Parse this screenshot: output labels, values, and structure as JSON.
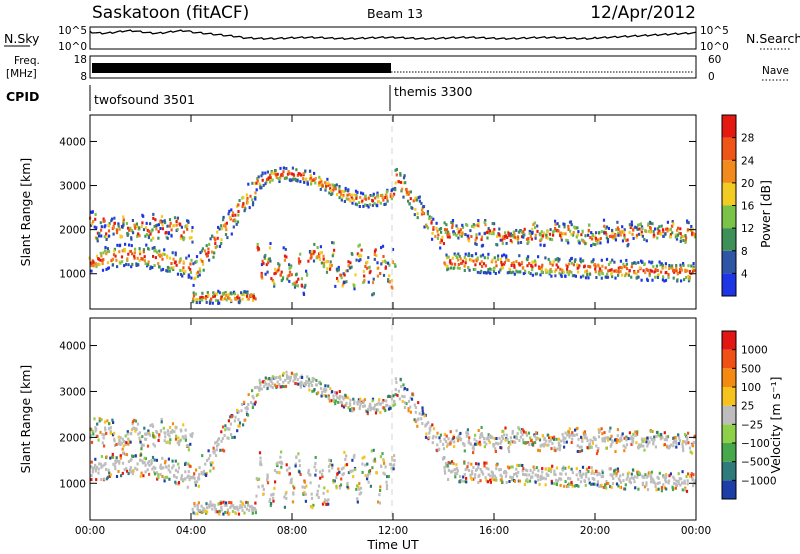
{
  "header": {
    "station": "Saskatoon (fitACF)",
    "beam": "Beam 13",
    "date": "12/Apr/2012"
  },
  "noise_panel": {
    "left_label": "N.Sky",
    "left_ticks": [
      "10^5",
      "10^0"
    ],
    "right_ticks": [
      "10^5",
      "10^0"
    ],
    "right_label": "N.Search"
  },
  "freq_panel": {
    "left_label_1": "Freq.",
    "left_label_2": "[MHz]",
    "left_ticks": [
      "18",
      "8"
    ],
    "right_ticks": [
      "60",
      "0"
    ],
    "right_label": "Nave"
  },
  "cpid": {
    "label": "CPID",
    "modes": [
      {
        "name": "twofsound 3501"
      },
      {
        "name": "themis 3300"
      }
    ]
  },
  "chart_data": [
    {
      "type": "heatmap",
      "title": "",
      "ylabel": "Slant Range [km]",
      "xlabel": "Time UT",
      "ylim": [
        200,
        4600
      ],
      "y_ticks": [
        "1000",
        "2000",
        "3000",
        "4000"
      ],
      "x_ticks": [
        "00:00",
        "04:00",
        "08:00",
        "12:00",
        "16:00",
        "20:00",
        "00:00"
      ],
      "colorbar": {
        "label": "Power [dB]",
        "ticks": [
          "4",
          "8",
          "12",
          "16",
          "20",
          "24",
          "28"
        ],
        "colors": [
          "#1e35e6",
          "#2f56a6",
          "#3f8f58",
          "#7bc248",
          "#f2cc22",
          "#f28a1d",
          "#ee5517",
          "#e41a12"
        ]
      }
    },
    {
      "type": "heatmap",
      "title": "",
      "ylabel": "Slant Range [km]",
      "xlabel": "Time UT",
      "ylim": [
        200,
        4600
      ],
      "y_ticks": [
        "1000",
        "2000",
        "3000",
        "4000"
      ],
      "x_ticks": [
        "00:00",
        "04:00",
        "08:00",
        "12:00",
        "16:00",
        "20:00",
        "00:00"
      ],
      "colorbar": {
        "label": "Velocity [m s⁻¹]",
        "ticks": [
          "1000",
          "500",
          "100",
          "25",
          "−25",
          "−100",
          "−500",
          "−1000"
        ],
        "colors": [
          "#1c3ea6",
          "#2f7a7a",
          "#46a84a",
          "#8fd04a",
          "#bdbdbd",
          "#f5c21e",
          "#f58a12",
          "#f05016",
          "#e21612"
        ]
      }
    }
  ]
}
